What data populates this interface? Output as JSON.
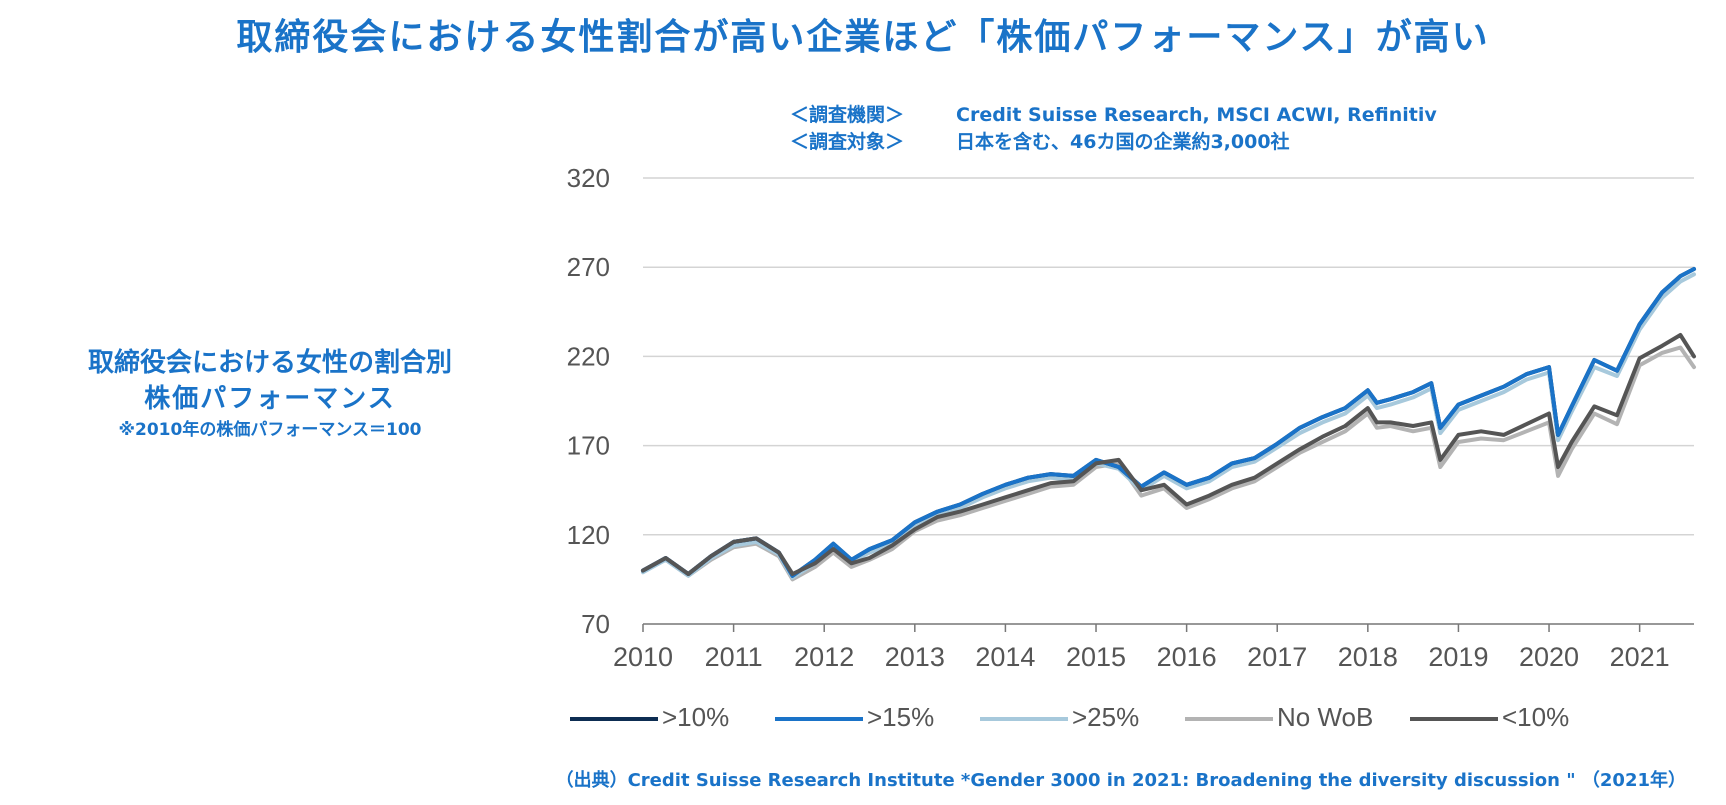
{
  "title": "取締役会における女性割合が高い企業ほど「株価パフォーマンス」が高い",
  "info": {
    "row1_tag": "＜調査機関＞",
    "row1_text": "Credit Suisse Research, MSCI ACWI, Refinitiv",
    "row2_tag": "＜調査対象＞",
    "row2_text": "日本を含む、46カ国の企業約3,000社"
  },
  "side_label": {
    "line1": "取締役会における女性の割合別",
    "line2": "株価パフォーマンス",
    "line3": "※2010年の株価パフォーマンス＝100"
  },
  "source": "（出典）Credit Suisse Research Institute *Gender 3000 in 2021: Broadening the diversity discussion \" （2021年）",
  "chart_data": {
    "type": "line",
    "title": "",
    "xlabel": "",
    "ylabel": "",
    "xlim": [
      2010,
      2021.6
    ],
    "ylim": [
      70,
      320
    ],
    "yticks": [
      70,
      120,
      170,
      220,
      270,
      320
    ],
    "xticks": [
      2010,
      2011,
      2012,
      2013,
      2014,
      2015,
      2016,
      2017,
      2018,
      2019,
      2020,
      2021
    ],
    "grid": true,
    "legend_position": "bottom",
    "x": [
      2010.0,
      2010.25,
      2010.5,
      2010.75,
      2011.0,
      2011.25,
      2011.5,
      2011.65,
      2011.9,
      2012.1,
      2012.3,
      2012.5,
      2012.75,
      2013.0,
      2013.25,
      2013.5,
      2013.75,
      2014.0,
      2014.25,
      2014.5,
      2014.75,
      2015.0,
      2015.25,
      2015.5,
      2015.75,
      2016.0,
      2016.25,
      2016.5,
      2016.75,
      2017.0,
      2017.25,
      2017.5,
      2017.75,
      2018.0,
      2018.1,
      2018.25,
      2018.5,
      2018.7,
      2018.8,
      2019.0,
      2019.25,
      2019.5,
      2019.75,
      2020.0,
      2020.1,
      2020.25,
      2020.5,
      2020.75,
      2021.0,
      2021.25,
      2021.45,
      2021.6
    ],
    "series": [
      {
        "name": ">10%",
        "color": "#0d2d52",
        "width": 4,
        "values": [
          100,
          107,
          98,
          108,
          116,
          118,
          110,
          97,
          106,
          115,
          106,
          112,
          117,
          127,
          133,
          137,
          143,
          148,
          152,
          154,
          153,
          162,
          158,
          147,
          155,
          148,
          152,
          160,
          163,
          171,
          180,
          186,
          191,
          201,
          194,
          196,
          200,
          205,
          180,
          193,
          198,
          203,
          210,
          214,
          176,
          192,
          218,
          212,
          238,
          256,
          265,
          269
        ]
      },
      {
        "name": ">15%",
        "color": "#1a73c8",
        "width": 4,
        "values": [
          100,
          107,
          98,
          108,
          116,
          118,
          110,
          97,
          106,
          115,
          106,
          112,
          117,
          127,
          133,
          137,
          143,
          148,
          152,
          154,
          153,
          162,
          158,
          147,
          155,
          148,
          152,
          160,
          163,
          171,
          180,
          186,
          191,
          201,
          194,
          196,
          200,
          205,
          180,
          193,
          198,
          203,
          210,
          214,
          176,
          192,
          218,
          212,
          238,
          256,
          265,
          269
        ]
      },
      {
        "name": ">25%",
        "color": "#a7c9dc",
        "width": 4,
        "values": [
          99,
          106,
          97,
          107,
          114,
          116,
          109,
          96,
          104,
          113,
          105,
          110,
          115,
          125,
          131,
          135,
          141,
          146,
          150,
          152,
          151,
          160,
          157,
          145,
          153,
          146,
          150,
          158,
          161,
          169,
          177,
          183,
          188,
          198,
          191,
          193,
          197,
          202,
          177,
          190,
          195,
          200,
          207,
          211,
          173,
          189,
          214,
          209,
          235,
          253,
          262,
          266
        ]
      },
      {
        "name": "No WoB",
        "color": "#b3b3b3",
        "width": 4,
        "values": [
          100,
          106,
          97,
          106,
          113,
          115,
          108,
          95,
          102,
          110,
          102,
          106,
          112,
          122,
          128,
          131,
          135,
          139,
          143,
          147,
          148,
          158,
          160,
          142,
          146,
          135,
          140,
          146,
          150,
          158,
          166,
          172,
          178,
          188,
          180,
          181,
          178,
          180,
          158,
          172,
          174,
          173,
          178,
          183,
          153,
          168,
          188,
          182,
          215,
          222,
          225,
          214
        ]
      },
      {
        "name": "<10%",
        "color": "#555555",
        "width": 4,
        "values": [
          100,
          107,
          98,
          108,
          116,
          118,
          110,
          98,
          104,
          112,
          104,
          107,
          114,
          123,
          130,
          133,
          137,
          141,
          145,
          149,
          150,
          160,
          162,
          145,
          148,
          137,
          142,
          148,
          152,
          160,
          168,
          175,
          181,
          191,
          183,
          183,
          181,
          183,
          162,
          176,
          178,
          176,
          182,
          188,
          158,
          172,
          192,
          187,
          219,
          226,
          232,
          220
        ]
      }
    ]
  }
}
